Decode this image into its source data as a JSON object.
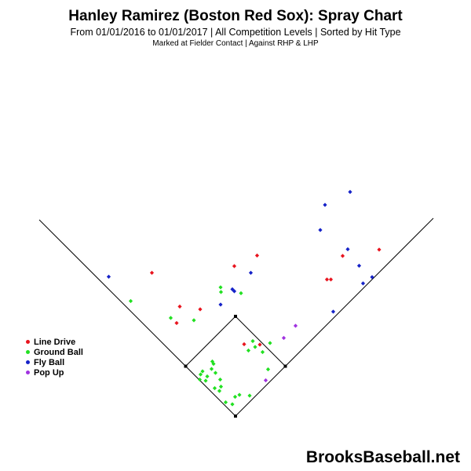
{
  "title": "Hanley Ramirez (Boston Red Sox): Spray Chart",
  "subtitle": "From 01/01/2016 to 01/01/2017 | All Competition Levels | Sorted by Hit Type",
  "subtitle2": "Marked at Fielder Contact |   Against RHP & LHP",
  "watermark": "BrooksBaseball.net",
  "colors": {
    "line_drive": "#e8141e",
    "ground_ball": "#22e022",
    "fly_ball": "#1522c8",
    "pop_up": "#a032e0"
  },
  "legend": [
    {
      "label": "Line Drive",
      "color": "#e8141e"
    },
    {
      "label": "Ground Ball",
      "color": "#22e022"
    },
    {
      "label": "Fly Ball",
      "color": "#1522c8"
    },
    {
      "label": "Pop Up",
      "color": "#a032e0"
    }
  ],
  "chart_data": {
    "type": "scatter",
    "field": "baseball diamond; positions in feet from home plate, +x toward right field (first-base side), +y toward center field",
    "series": [
      {
        "name": "Line Drive",
        "color": "#e8141e",
        "points": [
          [
            -213,
            365
          ],
          [
            -142,
            279
          ],
          [
            -150,
            237
          ],
          [
            -90,
            272
          ],
          [
            -3,
            382
          ],
          [
            55,
            409
          ],
          [
            22,
            183
          ],
          [
            62,
            182
          ],
          [
            273,
            408
          ],
          [
            243,
            348
          ],
          [
            233,
            348
          ],
          [
            366,
            424
          ]
        ]
      },
      {
        "name": "Ground Ball",
        "color": "#22e022",
        "points": [
          [
            -267,
            293
          ],
          [
            -165,
            250
          ],
          [
            -106,
            244
          ],
          [
            -38,
            328
          ],
          [
            -37,
            316
          ],
          [
            14,
            313
          ],
          [
            44,
            191
          ],
          [
            50,
            176
          ],
          [
            88,
            186
          ],
          [
            33,
            167
          ],
          [
            -59,
            139
          ],
          [
            -56,
            133
          ],
          [
            -61,
            120
          ],
          [
            -84,
            114
          ],
          [
            -89,
            106
          ],
          [
            -91,
            93
          ],
          [
            -72,
            101
          ],
          [
            -76,
            90
          ],
          [
            -53,
            71
          ],
          [
            -39,
            93
          ],
          [
            -51,
            110
          ],
          [
            -37,
            75
          ],
          [
            -41,
            64
          ],
          [
            -25,
            35
          ],
          [
            -8,
            30
          ],
          [
            -1,
            49
          ],
          [
            10,
            54
          ],
          [
            36,
            52
          ],
          [
            83,
            119
          ],
          [
            69,
            163
          ]
        ]
      },
      {
        "name": "Fly Ball",
        "color": "#1522c8",
        "points": [
          [
            -323,
            355
          ],
          [
            -3,
            318
          ],
          [
            -8,
            323
          ],
          [
            -38,
            284
          ],
          [
            39,
            365
          ],
          [
            228,
            538
          ],
          [
            216,
            474
          ],
          [
            286,
            425
          ],
          [
            249,
            266
          ],
          [
            315,
            383
          ],
          [
            325,
            338
          ],
          [
            348,
            354
          ],
          [
            292,
            571
          ]
        ]
      },
      {
        "name": "Pop Up",
        "color": "#a032e0",
        "points": [
          [
            123,
            199
          ],
          [
            153,
            230
          ],
          [
            77,
            91
          ]
        ]
      }
    ]
  }
}
